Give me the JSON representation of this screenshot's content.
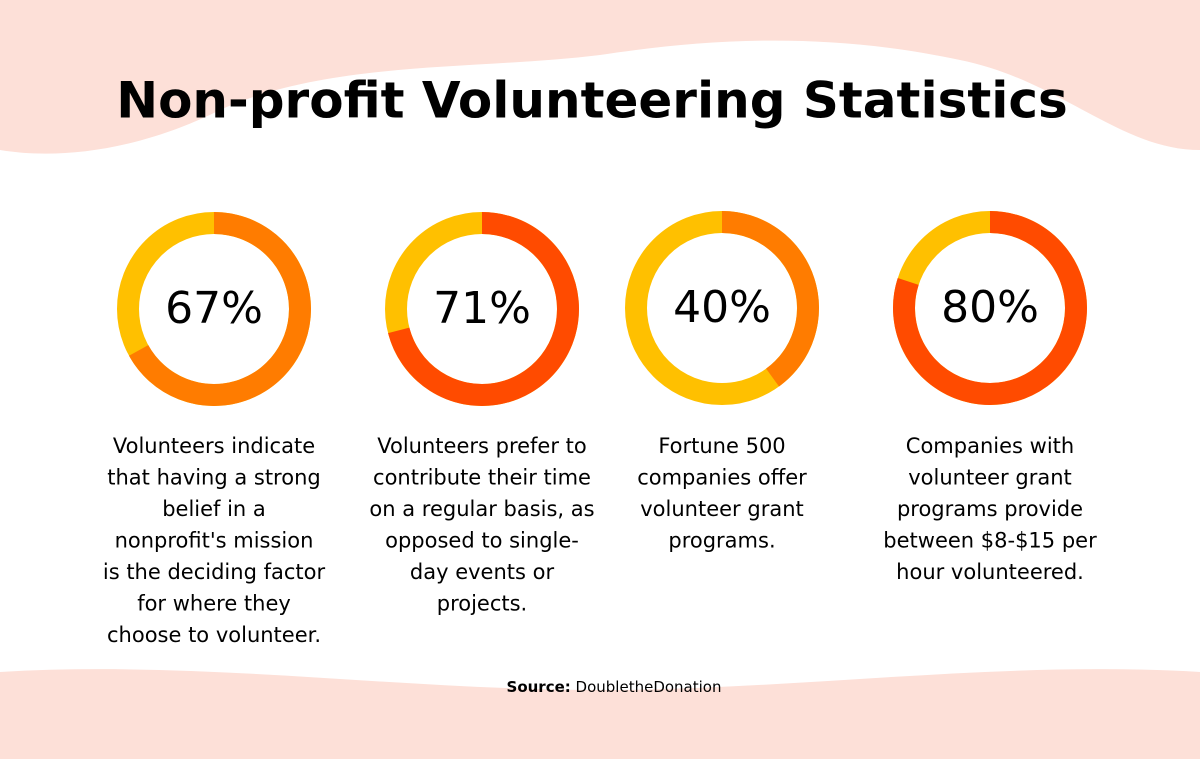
{
  "title": "Non-profit Volunteering Statistics",
  "chart_data": [
    {
      "type": "donut",
      "values": [
        67
      ],
      "value_labels": [
        "67%"
      ],
      "ylim": [
        0,
        100
      ],
      "color": "#ff7c00",
      "track_color": "#ffc000",
      "caption": [
        "Volunteers indicate",
        "that having a strong",
        "belief in a",
        "nonprofit's mission",
        "is the deciding factor",
        "for where they",
        "choose to volunteer."
      ]
    },
    {
      "type": "donut",
      "values": [
        71
      ],
      "value_labels": [
        "71%"
      ],
      "ylim": [
        0,
        100
      ],
      "color": "#ff4b00",
      "track_color": "#ffc000",
      "caption": [
        "Volunteers prefer to",
        "contribute their time",
        "on a regular basis, as",
        "opposed to single-",
        "day events or",
        "projects."
      ]
    },
    {
      "type": "donut",
      "values": [
        40
      ],
      "value_labels": [
        "40%"
      ],
      "ylim": [
        0,
        100
      ],
      "color": "#ff7c00",
      "track_color": "#ffc000",
      "caption": [
        "Fortune 500",
        "companies offer",
        "volunteer grant",
        "programs."
      ]
    },
    {
      "type": "donut",
      "values": [
        80
      ],
      "value_labels": [
        "80%"
      ],
      "ylim": [
        0,
        100
      ],
      "color": "#ff4b00",
      "track_color": "#ffc000",
      "caption": [
        "Companies with",
        "volunteer grant",
        "programs provide",
        "between $8-$15 per",
        "hour volunteered."
      ]
    }
  ],
  "source": {
    "label": "Source:",
    "text": "DoubletheDonation"
  }
}
